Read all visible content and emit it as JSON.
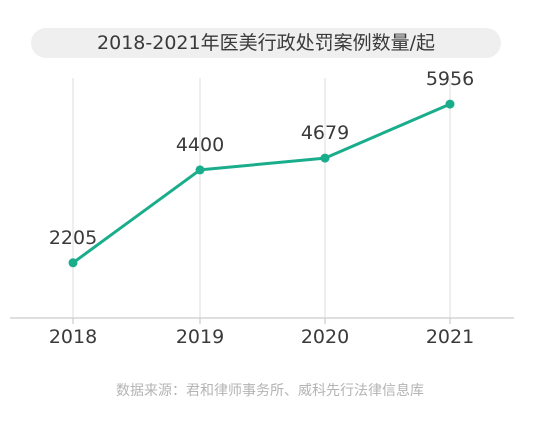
{
  "chart_data": {
    "type": "line",
    "title": "2018-2021年医美行政处罚案例数量/起",
    "categories": [
      "2018",
      "2019",
      "2020",
      "2021"
    ],
    "series": [
      {
        "values": [
          2205,
          4400,
          4679,
          5956
        ]
      }
    ],
    "ylim": [
      0,
      7000
    ],
    "grid": false,
    "show_y_axis": false,
    "show_data_labels": true
  },
  "source": "数据来源：君和律师事务所、威科先行法律信息库",
  "colors": {
    "line": "#1aad8c",
    "axis": "#cccccc",
    "tick": "#dedede",
    "label": "#3a3a3a",
    "title_bg": "#efefef",
    "source": "#b4b4b4"
  }
}
